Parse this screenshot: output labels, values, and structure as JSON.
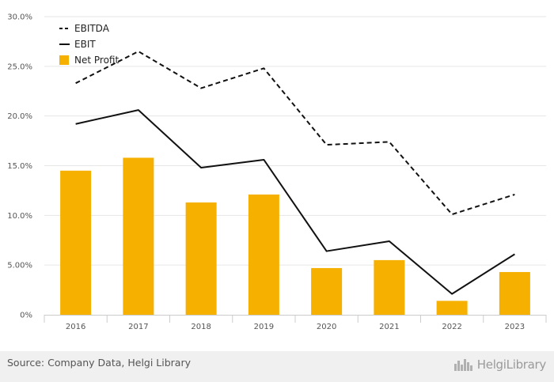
{
  "chart_data": {
    "type": "bar",
    "categories": [
      "2016",
      "2017",
      "2018",
      "2019",
      "2020",
      "2021",
      "2022",
      "2023"
    ],
    "ylim": [
      0,
      30
    ],
    "yticks": [
      "0%",
      "5.00%",
      "10.0%",
      "15.0%",
      "20.0%",
      "25.0%",
      "30.0%"
    ],
    "ytick_values": [
      0,
      5,
      10,
      15,
      20,
      25,
      30
    ],
    "grid": true,
    "legend_position": "top-left",
    "series": [
      {
        "name": "EBITDA",
        "type": "line",
        "style": "dashed",
        "color": "#111111",
        "values": [
          23.3,
          26.5,
          22.8,
          24.8,
          17.1,
          17.4,
          10.1,
          12.1
        ]
      },
      {
        "name": "EBIT",
        "type": "line",
        "style": "solid",
        "color": "#111111",
        "values": [
          19.2,
          20.6,
          14.8,
          15.6,
          6.4,
          7.4,
          2.1,
          6.1
        ]
      },
      {
        "name": "Net Profit",
        "type": "bar",
        "color": "#f5b000",
        "values": [
          14.5,
          15.8,
          11.3,
          12.1,
          4.7,
          5.5,
          1.4,
          4.3
        ]
      }
    ]
  },
  "footer": {
    "source": "Source: Company Data, Helgi Library",
    "logo_text": "HelgiLibrary",
    "logo_icon": "helgi-library-icon"
  }
}
